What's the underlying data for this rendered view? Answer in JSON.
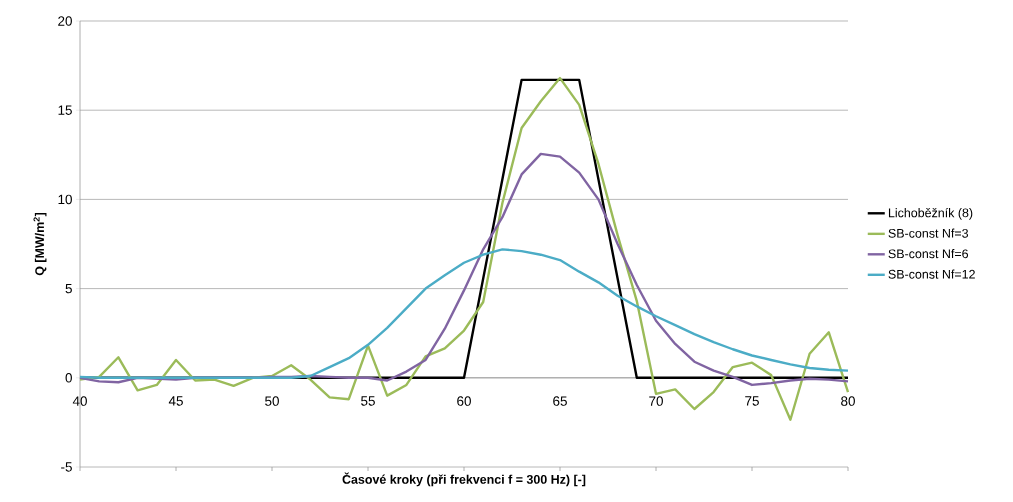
{
  "chart_data": {
    "type": "line",
    "xlabel": "Časové kroky  (při frekvenci f = 300 Hz) [-]",
    "ylabel": "Q [MW/m$^{2}$]",
    "xlim": [
      40,
      80
    ],
    "ylim": [
      -5,
      20
    ],
    "xticks": [
      40,
      45,
      50,
      55,
      60,
      65,
      70,
      75,
      80
    ],
    "yticks": [
      -5,
      0,
      5,
      10,
      15,
      20
    ],
    "grid": "y",
    "legend": "right",
    "marker": "none",
    "line_style": "solid",
    "series": [
      {
        "name": "Lichoběžník (8)",
        "color": "#000000",
        "x": [
          40,
          60,
          63,
          66,
          69,
          80
        ],
        "values": [
          0,
          0,
          16.7,
          16.7,
          0,
          0
        ]
      },
      {
        "name": "SB-const Nf=3",
        "color": "#9bbb59",
        "x": [
          40,
          41,
          42,
          43,
          44,
          45,
          46,
          47,
          48,
          49,
          50,
          51,
          52,
          53,
          54,
          55,
          56,
          57,
          58,
          59,
          60,
          61,
          62,
          63,
          64,
          65,
          66,
          67,
          68,
          69,
          70,
          71,
          72,
          73,
          74,
          75,
          76,
          77,
          78,
          79,
          80
        ],
        "values": [
          -0.1,
          0.05,
          1.15,
          -0.7,
          -0.4,
          1.0,
          -0.15,
          -0.1,
          -0.45,
          0,
          0.1,
          0.7,
          -0.1,
          -1.1,
          -1.2,
          1.8,
          -1.0,
          -0.4,
          1.2,
          1.65,
          2.65,
          4.25,
          9.8,
          14.0,
          15.5,
          16.8,
          15.3,
          12.0,
          8.0,
          4.3,
          -0.9,
          -0.65,
          -1.75,
          -0.8,
          0.6,
          0.85,
          0.15,
          -2.35,
          1.35,
          2.55,
          -0.8
        ]
      },
      {
        "name": "SB-const Nf=6",
        "color": "#8064a2",
        "x": [
          40,
          41,
          42,
          43,
          44,
          45,
          46,
          47,
          48,
          49,
          50,
          51,
          52,
          53,
          54,
          55,
          56,
          57,
          58,
          59,
          60,
          61,
          62,
          63,
          64,
          65,
          66,
          67,
          68,
          69,
          70,
          71,
          72,
          73,
          74,
          75,
          76,
          77,
          78,
          79,
          80
        ],
        "values": [
          0,
          -0.2,
          -0.25,
          0,
          -0.05,
          -0.1,
          0,
          0,
          0,
          0,
          0.05,
          0.05,
          0.1,
          0.05,
          0,
          0,
          -0.15,
          0.35,
          1.0,
          2.75,
          4.9,
          7.2,
          9.0,
          11.4,
          12.55,
          12.4,
          11.5,
          10.0,
          7.5,
          5.2,
          3.2,
          1.9,
          0.9,
          0.4,
          0.05,
          -0.4,
          -0.3,
          -0.15,
          -0.05,
          -0.1,
          -0.2
        ]
      },
      {
        "name": "SB-const Nf=12",
        "color": "#4bacc6",
        "x": [
          40,
          41,
          42,
          43,
          44,
          45,
          46,
          47,
          48,
          49,
          50,
          51,
          52,
          53,
          54,
          55,
          56,
          57,
          58,
          59,
          60,
          61,
          62,
          63,
          64,
          65,
          66,
          67,
          68,
          69,
          70,
          71,
          72,
          73,
          74,
          75,
          76,
          77,
          78,
          79,
          80
        ],
        "values": [
          0.05,
          0,
          0,
          0,
          0,
          0,
          0,
          0,
          0,
          0,
          0,
          0,
          0.1,
          0.6,
          1.1,
          1.85,
          2.8,
          3.9,
          5.0,
          5.75,
          6.45,
          6.9,
          7.2,
          7.1,
          6.9,
          6.6,
          5.95,
          5.35,
          4.6,
          4.0,
          3.45,
          2.95,
          2.45,
          2.0,
          1.6,
          1.25,
          1.0,
          0.75,
          0.55,
          0.45,
          0.4
        ]
      }
    ]
  }
}
